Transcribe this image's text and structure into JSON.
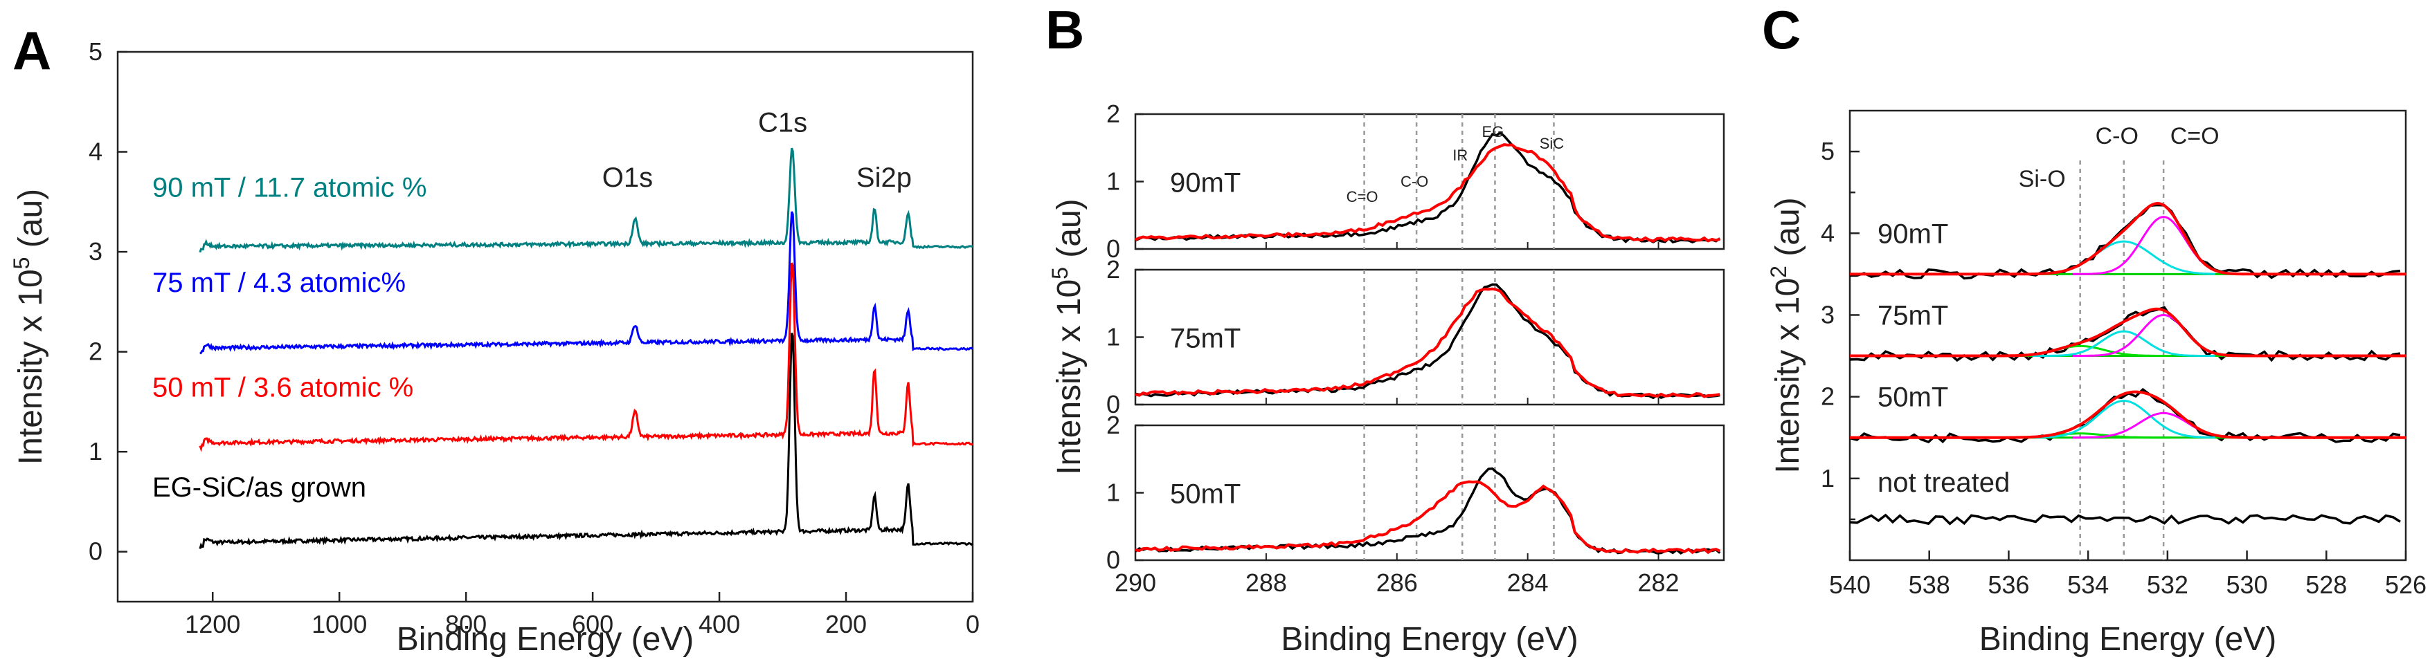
{
  "chart_data": [
    {
      "panel": "A",
      "type": "line",
      "xlabel": "Binding Energy (eV)",
      "ylabel": "Intensity x 10",
      "ylabel_sup": "5",
      "ylabel_unit": " (au)",
      "xlim": [
        1350,
        0
      ],
      "ylim": [
        -0.5,
        5
      ],
      "xticks": [
        1200,
        1000,
        800,
        600,
        400,
        200,
        0
      ],
      "yticks": [
        0,
        1,
        2,
        3,
        4,
        5
      ],
      "peak_labels": [
        {
          "text": "O1s",
          "x": 545,
          "y": 3.65
        },
        {
          "text": "C1s",
          "x": 300,
          "y": 4.2
        },
        {
          "text": "Si2p",
          "x": 140,
          "y": 3.65
        }
      ],
      "series": [
        {
          "name": "EG-SiC/as grown",
          "color": "#000000",
          "offset": 0.08,
          "slope": 0.00012,
          "peaks": [
            [
              285,
              2.0,
              4
            ],
            [
              155,
              0.35,
              3
            ],
            [
              102,
              0.45,
              3
            ],
            [
              533,
              0.0,
              4
            ]
          ],
          "label_y": 0.55
        },
        {
          "name": "50 mT / 3.6 atomic %",
          "color": "#ff0000",
          "offset": 1.08,
          "slope": 9e-05,
          "peaks": [
            [
              285,
              1.75,
              4
            ],
            [
              155,
              0.65,
              3
            ],
            [
              102,
              0.5,
              3
            ],
            [
              533,
              0.25,
              4
            ]
          ],
          "label_y": 1.55
        },
        {
          "name": "75 mT / 4.3 atomic%",
          "color": "#0000ff",
          "offset": 2.03,
          "slope": 8e-05,
          "peaks": [
            [
              285,
              1.3,
              4
            ],
            [
              155,
              0.35,
              3
            ],
            [
              102,
              0.3,
              3
            ],
            [
              533,
              0.18,
              4
            ]
          ],
          "label_y": 2.6
        },
        {
          "name": "90 mT / 11.7 atomic %",
          "color": "#008080",
          "offset": 3.05,
          "slope": 4e-05,
          "peaks": [
            [
              285,
              0.95,
              4
            ],
            [
              155,
              0.33,
              3
            ],
            [
              102,
              0.3,
              3
            ],
            [
              533,
              0.25,
              4
            ]
          ],
          "label_y": 3.55
        }
      ]
    },
    {
      "panel": "B",
      "type": "line",
      "xlabel": "Binding Energy (eV)",
      "ylabel": "Intensity x 10",
      "ylabel_sup": "5",
      "ylabel_unit": " (au)",
      "xlim": [
        290,
        281
      ],
      "xticks": [
        290,
        288,
        286,
        284,
        282
      ],
      "subplot_ylim": [
        0,
        2
      ],
      "subplot_yticks": [
        0,
        1,
        2
      ],
      "reference_lines": [
        {
          "label": "C=O",
          "x": 286.5
        },
        {
          "label": "C-O",
          "x": 285.7
        },
        {
          "label": "IR",
          "x": 285.0
        },
        {
          "label": "EG",
          "x": 284.5
        },
        {
          "label": "SiC",
          "x": 283.6
        }
      ],
      "subplots": [
        {
          "label": "90mT",
          "black_peaks": [
            [
              284.5,
              1.3,
              0.35
            ],
            [
              283.7,
              0.7,
              0.4
            ],
            [
              285.4,
              0.2,
              0.5
            ]
          ],
          "red_peaks": [
            [
              284.45,
              1.05,
              0.45
            ],
            [
              283.7,
              0.7,
              0.4
            ],
            [
              285.5,
              0.28,
              0.6
            ]
          ]
        },
        {
          "label": "75mT",
          "black_peaks": [
            [
              284.55,
              1.35,
              0.38
            ],
            [
              283.7,
              0.6,
              0.4
            ],
            [
              285.4,
              0.3,
              0.6
            ]
          ],
          "red_peaks": [
            [
              284.6,
              1.3,
              0.45
            ],
            [
              283.7,
              0.6,
              0.4
            ],
            [
              285.5,
              0.35,
              0.6
            ]
          ]
        },
        {
          "label": "50mT",
          "black_peaks": [
            [
              284.55,
              1.05,
              0.3
            ],
            [
              283.7,
              0.75,
              0.3
            ],
            [
              285.4,
              0.15,
              0.5
            ]
          ],
          "red_peaks": [
            [
              284.8,
              0.8,
              0.45
            ],
            [
              283.7,
              0.75,
              0.3
            ],
            [
              285.6,
              0.25,
              0.6
            ]
          ]
        }
      ]
    },
    {
      "panel": "C",
      "type": "line",
      "xlabel": "Binding Energy (eV)",
      "ylabel": "Intensity x 10",
      "ylabel_sup": "2",
      "ylabel_unit": " (au)",
      "xlim": [
        540,
        526
      ],
      "ylim": [
        0,
        5.5
      ],
      "xticks": [
        540,
        538,
        536,
        534,
        532,
        530,
        528,
        526
      ],
      "yticks": [
        0.5,
        1,
        1.5,
        2,
        2.5,
        3,
        3.5,
        4,
        4.5,
        5
      ],
      "ytick_labels": [
        "",
        "1",
        "",
        "2",
        "",
        "3",
        "",
        "4",
        "",
        "5"
      ],
      "reference_lines": [
        {
          "label": "Si-O",
          "x": 534.2
        },
        {
          "label": "C-O",
          "x": 533.1
        },
        {
          "label": "C=O",
          "x": 532.1
        }
      ],
      "series": [
        {
          "name": "90mT",
          "baseline": 3.5,
          "components": [
            [
              534.2,
              0.0,
              0.7
            ],
            [
              533.1,
              0.4,
              0.7
            ],
            [
              532.1,
              0.7,
              0.55
            ]
          ]
        },
        {
          "name": "75mT",
          "baseline": 2.5,
          "components": [
            [
              534.2,
              0.12,
              0.6
            ],
            [
              533.1,
              0.3,
              0.55
            ],
            [
              532.1,
              0.5,
              0.55
            ]
          ]
        },
        {
          "name": "50mT",
          "baseline": 1.5,
          "components": [
            [
              534.2,
              0.05,
              0.6
            ],
            [
              533.1,
              0.45,
              0.65
            ],
            [
              532.1,
              0.3,
              0.6
            ]
          ]
        },
        {
          "name": "not treated",
          "baseline": 0.5,
          "components": []
        }
      ],
      "component_colors": [
        "#00dd00",
        "#00e0e0",
        "#ff00ff"
      ],
      "fit_color": "#ff0000",
      "data_color": "#000000",
      "baseline_color": "#00cc00"
    }
  ]
}
